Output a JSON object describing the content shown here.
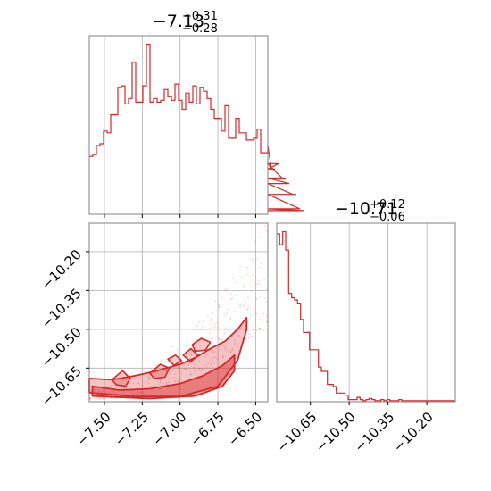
{
  "chart_data": {
    "type": "corner",
    "colors": {
      "series": "#d62728",
      "grid": "#b0b0b0",
      "frame": "#808080"
    },
    "grid": true,
    "panels": [
      {
        "type": "histogram",
        "position": "top-left",
        "title": {
          "value": "−7.13",
          "plus": "+0.31",
          "minus": "−0.28"
        },
        "xlim": [
          -7.6,
          -6.42
        ],
        "bin_edges_start": -7.6,
        "bin_width": 0.0236,
        "counts": [
          32,
          33,
          38,
          39,
          46,
          45,
          55,
          55,
          70,
          71,
          61,
          64,
          84,
          62,
          62,
          71,
          94,
          62,
          64,
          62,
          63,
          69,
          65,
          63,
          72,
          63,
          58,
          67,
          62,
          71,
          61,
          70,
          68,
          64,
          58,
          53,
          53,
          46,
          60,
          42,
          42,
          53,
          45,
          45,
          41,
          41,
          42,
          47,
          34,
          34,
          38,
          25,
          25,
          28,
          20,
          20,
          17,
          11,
          11,
          3,
          2
        ]
      },
      {
        "type": "scatter_contour",
        "position": "bottom-left",
        "xlim": [
          -7.6,
          -6.42
        ],
        "ylim": [
          -10.78,
          -10.09
        ],
        "x_ticks": [
          "−7.50",
          "−7.25",
          "−7.00",
          "−6.75",
          "−6.50"
        ],
        "x_tick_values": [
          -7.5,
          -7.25,
          -7.0,
          -6.75,
          -6.5
        ],
        "y_ticks": [
          "−10.20",
          "−10.35",
          "−10.50",
          "−10.65"
        ],
        "y_tick_values": [
          -10.2,
          -10.35,
          -10.5,
          -10.65
        ],
        "contour_bands": [
          {
            "level": "outer",
            "upper": [
              [
                -7.6,
                -10.69
              ],
              [
                -7.45,
                -10.695
              ],
              [
                -7.3,
                -10.68
              ],
              [
                -7.15,
                -10.66
              ],
              [
                -7.0,
                -10.635
              ],
              [
                -6.9,
                -10.61
              ],
              [
                -6.8,
                -10.575
              ],
              [
                -6.7,
                -10.545
              ],
              [
                -6.62,
                -10.5
              ],
              [
                -6.56,
                -10.455
              ]
            ],
            "lower": [
              [
                -7.6,
                -10.745
              ],
              [
                -7.3,
                -10.76
              ],
              [
                -7.0,
                -10.76
              ],
              [
                -6.75,
                -10.72
              ],
              [
                -6.62,
                -10.62
              ],
              [
                -6.56,
                -10.5
              ]
            ]
          },
          {
            "level": "inner",
            "upper": [
              [
                -7.58,
                -10.72
              ],
              [
                -7.4,
                -10.735
              ],
              [
                -7.2,
                -10.73
              ],
              [
                -7.0,
                -10.71
              ],
              [
                -6.85,
                -10.68
              ],
              [
                -6.72,
                -10.64
              ],
              [
                -6.64,
                -10.6
              ]
            ],
            "lower": [
              [
                -7.58,
                -10.758
              ],
              [
                -7.2,
                -10.768
              ],
              [
                -6.9,
                -10.758
              ],
              [
                -6.72,
                -10.72
              ],
              [
                -6.64,
                -10.66
              ]
            ]
          }
        ],
        "blob_contours": [
          [
            [
              -7.45,
              -10.695
            ],
            [
              -7.38,
              -10.66
            ],
            [
              -7.33,
              -10.69
            ],
            [
              -7.36,
              -10.72
            ],
            [
              -7.42,
              -10.715
            ]
          ],
          [
            [
              -7.2,
              -10.67
            ],
            [
              -7.13,
              -10.635
            ],
            [
              -7.07,
              -10.65
            ],
            [
              -7.1,
              -10.685
            ],
            [
              -7.17,
              -10.69
            ]
          ],
          [
            [
              -6.98,
              -10.6
            ],
            [
              -6.93,
              -10.575
            ],
            [
              -6.88,
              -10.6
            ],
            [
              -6.93,
              -10.625
            ]
          ],
          [
            [
              -6.92,
              -10.56
            ],
            [
              -6.86,
              -10.535
            ],
            [
              -6.8,
              -10.55
            ],
            [
              -6.83,
              -10.58
            ],
            [
              -6.9,
              -10.585
            ]
          ],
          [
            [
              -7.08,
              -10.615
            ],
            [
              -7.03,
              -10.6
            ],
            [
              -6.99,
              -10.62
            ],
            [
              -7.04,
              -10.64
            ]
          ]
        ],
        "points_seed": 7
      },
      {
        "type": "histogram",
        "position": "bottom-right",
        "title": {
          "value": "−10.71",
          "plus": "+0.12",
          "minus": "−0.06"
        },
        "xlim": [
          -10.78,
          -10.09
        ],
        "x_ticks": [
          "−10.65",
          "−10.50",
          "−10.35",
          "−10.20"
        ],
        "x_tick_values": [
          -10.65,
          -10.5,
          -10.35,
          -10.2
        ],
        "bin_edges_start": -10.78,
        "bin_width": 0.0115,
        "counts": [
          155,
          145,
          157,
          140,
          100,
          96,
          94,
          91,
          76,
          64,
          64,
          48,
          48,
          48,
          32,
          28,
          28,
          16,
          16,
          14,
          8,
          8,
          8,
          6,
          2,
          2,
          2,
          4,
          2,
          1,
          2,
          3,
          2,
          1,
          1,
          2,
          1,
          2,
          1,
          1,
          1,
          2,
          1,
          1,
          1,
          1,
          1,
          1,
          1,
          1,
          1,
          1,
          1,
          1,
          1,
          1,
          1,
          1,
          1,
          1
        ]
      }
    ]
  }
}
